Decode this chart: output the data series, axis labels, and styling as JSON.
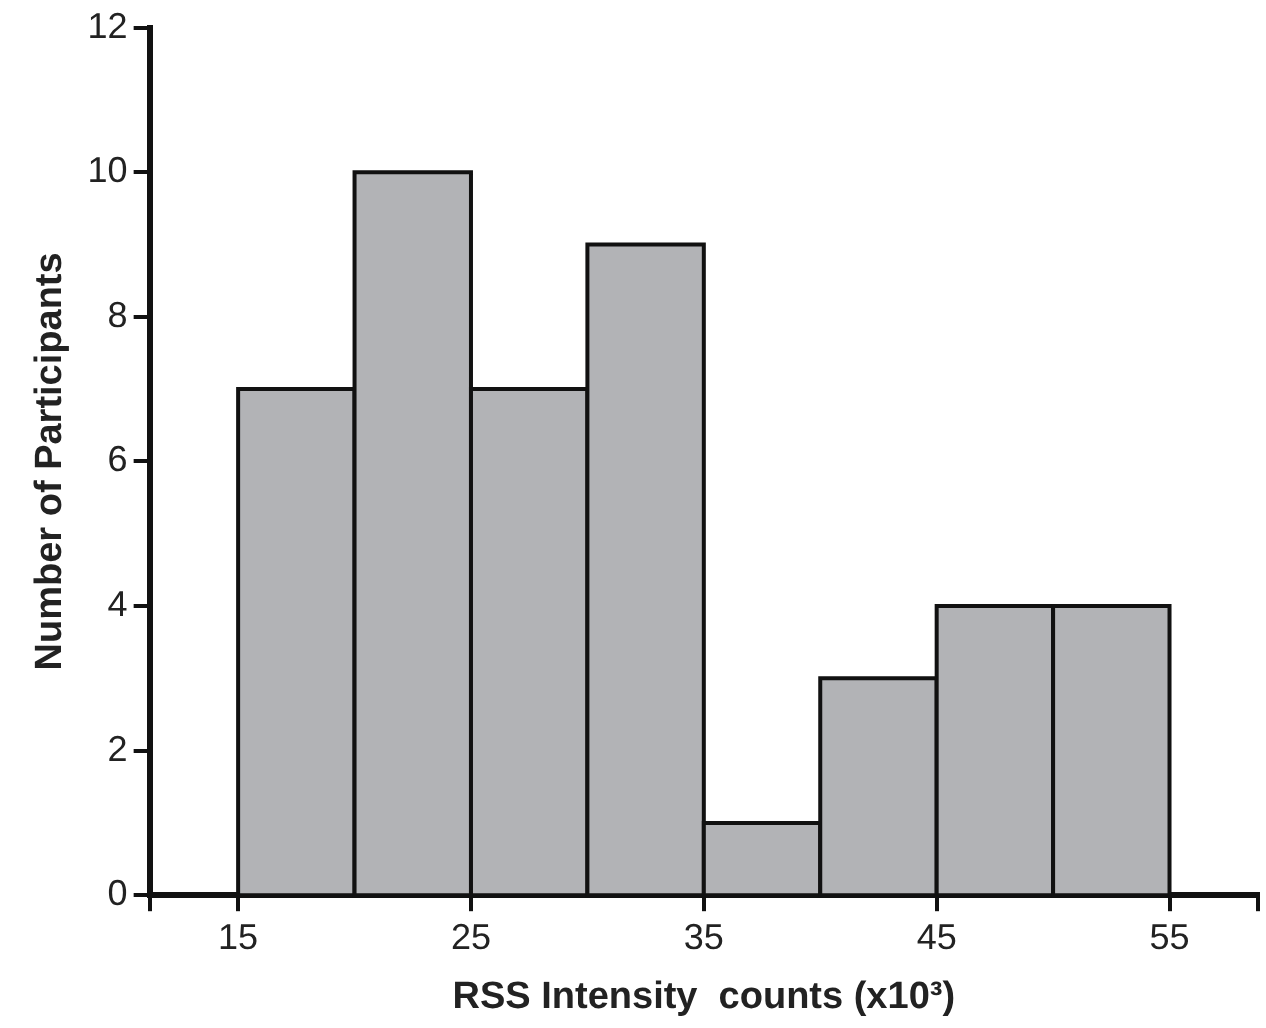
{
  "chart_data": {
    "type": "histogram",
    "xlabel": "RSS Intensity  counts (x10³)",
    "ylabel": "Number of Participants",
    "bins": [
      15,
      20,
      25,
      30,
      35,
      40,
      45,
      50,
      55
    ],
    "values": [
      7,
      10,
      7,
      9,
      1,
      3,
      4,
      4
    ],
    "color": "#b2b3b6",
    "xlim": [
      11.2,
      58.8
    ],
    "xticks": [
      {
        "value": 11.2,
        "label": null
      },
      15,
      25,
      35,
      45,
      55,
      {
        "value": 58.8,
        "label": null
      }
    ],
    "ylim": [
      0,
      12
    ],
    "yticks": [
      0,
      2,
      4,
      6,
      8,
      10,
      12
    ],
    "grid": false,
    "legend": false
  }
}
